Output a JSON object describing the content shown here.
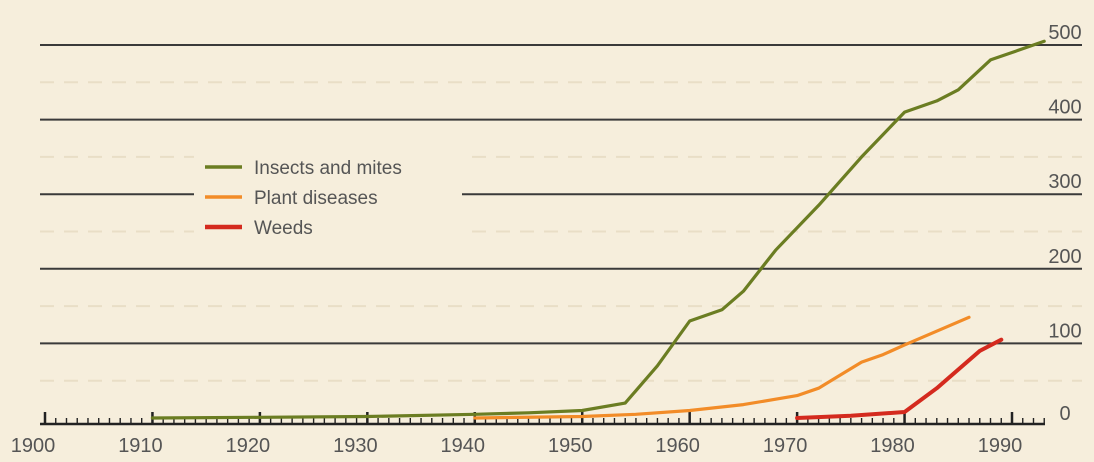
{
  "chart_data": {
    "type": "line",
    "title": "",
    "xlabel": "",
    "ylabel": "",
    "xlim": [
      1900,
      1995
    ],
    "ylim": [
      0,
      500
    ],
    "x_ticks": [
      1900,
      1910,
      1920,
      1930,
      1940,
      1950,
      1960,
      1970,
      1980,
      1990
    ],
    "y_ticks": [
      0,
      100,
      200,
      300,
      400,
      500
    ],
    "grid": true,
    "legend_position": "upper-left",
    "colors": {
      "background": "#f6eedc",
      "grid": "#3a3a3a",
      "axis": "#222222",
      "text": "#555555"
    },
    "series": [
      {
        "name": "Insects and mites",
        "color": "#6b7d22",
        "points": [
          [
            1910,
            0
          ],
          [
            1920,
            1
          ],
          [
            1930,
            2
          ],
          [
            1940,
            5
          ],
          [
            1945,
            7
          ],
          [
            1950,
            10
          ],
          [
            1954,
            20
          ],
          [
            1957,
            70
          ],
          [
            1960,
            130
          ],
          [
            1963,
            145
          ],
          [
            1965,
            170
          ],
          [
            1968,
            225
          ],
          [
            1972,
            285
          ],
          [
            1976,
            350
          ],
          [
            1978,
            380
          ],
          [
            1980,
            410
          ],
          [
            1983,
            425
          ],
          [
            1985,
            440
          ],
          [
            1988,
            480
          ],
          [
            1990,
            490
          ],
          [
            1993,
            505
          ]
        ]
      },
      {
        "name": "Plant diseases",
        "color": "#f28c28",
        "points": [
          [
            1940,
            0
          ],
          [
            1950,
            2
          ],
          [
            1955,
            5
          ],
          [
            1960,
            10
          ],
          [
            1965,
            18
          ],
          [
            1970,
            30
          ],
          [
            1972,
            40
          ],
          [
            1976,
            75
          ],
          [
            1978,
            85
          ],
          [
            1980,
            98
          ],
          [
            1986,
            135
          ]
        ]
      },
      {
        "name": "Weeds",
        "color": "#d42a1e",
        "points": [
          [
            1970,
            0
          ],
          [
            1975,
            3
          ],
          [
            1980,
            8
          ],
          [
            1983,
            40
          ],
          [
            1987,
            90
          ],
          [
            1989,
            105
          ]
        ]
      }
    ]
  }
}
